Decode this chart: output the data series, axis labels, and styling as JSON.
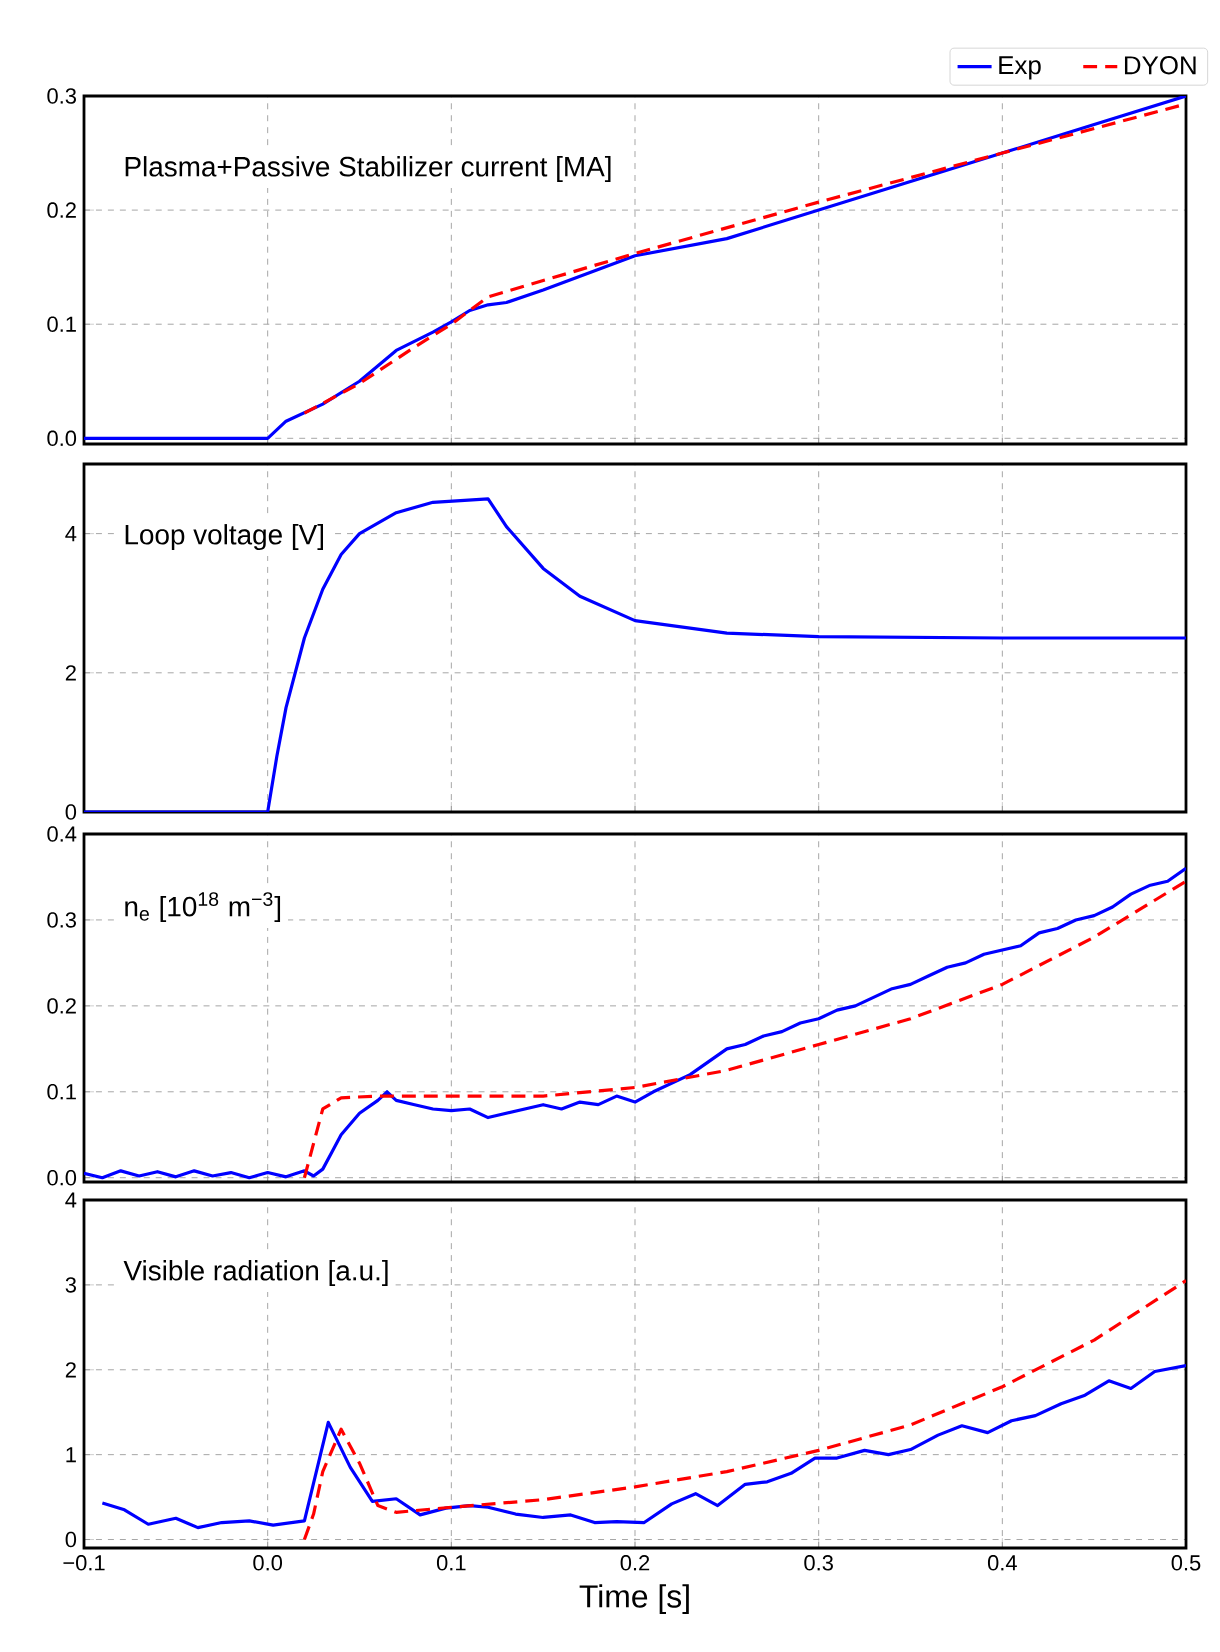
{
  "chart_data": [
    {
      "type": "line",
      "annotations": [
        "Plasma+Passive Stabilizer current [MA]"
      ],
      "xlim": [
        -0.1,
        0.5
      ],
      "ylim": [
        -0.005,
        0.3
      ],
      "xticks": [
        -0.1,
        0.0,
        0.1,
        0.2,
        0.3,
        0.4,
        0.5
      ],
      "yticks": [
        {
          "value": 0.0,
          "label": "0.0"
        },
        0.1,
        0.2,
        0.3
      ],
      "tick_labels": "y",
      "grid": true,
      "legend": "top right",
      "series": [
        {
          "name": "Exp",
          "color": "#0000ff",
          "line_style": "solid",
          "x": [
            -0.1,
            -0.05,
            0.0,
            0.01,
            0.03,
            0.05,
            0.07,
            0.09,
            0.1,
            0.11,
            0.12,
            0.13,
            0.15,
            0.2,
            0.25,
            0.3,
            0.35,
            0.4,
            0.45,
            0.5
          ],
          "values": [
            0.0,
            0.0,
            0.0,
            0.015,
            0.03,
            0.05,
            0.077,
            0.093,
            0.102,
            0.112,
            0.117,
            0.119,
            0.13,
            0.16,
            0.175,
            0.2,
            0.225,
            0.25,
            0.275,
            0.3
          ]
        },
        {
          "name": "DYON",
          "color": "#ff0000",
          "line_style": "dashed",
          "x": [
            0.02,
            0.05,
            0.08,
            0.1,
            0.12,
            0.2,
            0.3,
            0.4,
            0.5
          ],
          "values": [
            0.022,
            0.048,
            0.08,
            0.1,
            0.124,
            0.162,
            0.207,
            0.25,
            0.293
          ]
        }
      ]
    },
    {
      "type": "line",
      "annotations": [
        "Loop voltage [V]"
      ],
      "xlim": [
        -0.1,
        0.5
      ],
      "ylim": [
        0,
        5
      ],
      "xticks": [
        -0.1,
        0.0,
        0.1,
        0.2,
        0.3,
        0.4,
        0.5
      ],
      "yticks": [
        0,
        2,
        4
      ],
      "tick_labels": "y",
      "grid": true,
      "series": [
        {
          "color": "#0000ff",
          "line_style": "solid",
          "x": [
            -0.1,
            -0.05,
            0.0,
            0.005,
            0.01,
            0.02,
            0.03,
            0.04,
            0.05,
            0.07,
            0.09,
            0.12,
            0.13,
            0.15,
            0.17,
            0.2,
            0.25,
            0.3,
            0.4,
            0.5
          ],
          "values": [
            0,
            0,
            0,
            0.8,
            1.5,
            2.5,
            3.2,
            3.7,
            4.0,
            4.3,
            4.45,
            4.5,
            4.1,
            3.5,
            3.1,
            2.75,
            2.57,
            2.52,
            2.5,
            2.5
          ]
        }
      ]
    },
    {
      "type": "line",
      "annotations": [
        "n$_{e}$ [10$^{18}$ m$^{−3}$]"
      ],
      "xlim": [
        -0.1,
        0.5
      ],
      "ylim": [
        -0.005,
        0.4
      ],
      "xticks": [
        -0.1,
        0.0,
        0.1,
        0.2,
        0.3,
        0.4,
        0.5
      ],
      "yticks": [
        {
          "value": 0.0,
          "label": "0.0"
        },
        0.1,
        0.2,
        0.3,
        0.4
      ],
      "tick_labels": "y",
      "grid": true,
      "series": [
        {
          "color": "#0000ff",
          "line_style": "solid",
          "x": [
            -0.1,
            -0.09,
            -0.08,
            -0.07,
            -0.06,
            -0.05,
            -0.04,
            -0.03,
            -0.02,
            -0.01,
            0.0,
            0.01,
            0.02,
            0.025,
            0.03,
            0.035,
            0.04,
            0.05,
            0.06,
            0.065,
            0.07,
            0.08,
            0.09,
            0.1,
            0.11,
            0.12,
            0.13,
            0.14,
            0.15,
            0.16,
            0.17,
            0.18,
            0.19,
            0.2,
            0.21,
            0.22,
            0.23,
            0.24,
            0.25,
            0.26,
            0.27,
            0.28,
            0.29,
            0.3,
            0.31,
            0.32,
            0.33,
            0.34,
            0.35,
            0.36,
            0.37,
            0.38,
            0.39,
            0.4,
            0.41,
            0.42,
            0.43,
            0.44,
            0.45,
            0.46,
            0.47,
            0.48,
            0.49,
            0.5
          ],
          "values": [
            0.005,
            0.0,
            0.008,
            0.002,
            0.007,
            0.001,
            0.008,
            0.002,
            0.006,
            0.0,
            0.006,
            0.001,
            0.008,
            0.002,
            0.01,
            0.03,
            0.05,
            0.075,
            0.09,
            0.1,
            0.09,
            0.085,
            0.08,
            0.078,
            0.08,
            0.07,
            0.075,
            0.08,
            0.085,
            0.08,
            0.088,
            0.085,
            0.095,
            0.088,
            0.1,
            0.11,
            0.12,
            0.135,
            0.15,
            0.155,
            0.165,
            0.17,
            0.18,
            0.185,
            0.195,
            0.2,
            0.21,
            0.22,
            0.225,
            0.235,
            0.245,
            0.25,
            0.26,
            0.265,
            0.27,
            0.285,
            0.29,
            0.3,
            0.305,
            0.315,
            0.33,
            0.34,
            0.345,
            0.36
          ]
        },
        {
          "color": "#ff0000",
          "line_style": "dashed",
          "x": [
            0.02,
            0.025,
            0.03,
            0.04,
            0.06,
            0.1,
            0.15,
            0.2,
            0.25,
            0.3,
            0.35,
            0.4,
            0.45,
            0.5
          ],
          "values": [
            0.0,
            0.04,
            0.08,
            0.093,
            0.095,
            0.095,
            0.095,
            0.105,
            0.125,
            0.155,
            0.185,
            0.225,
            0.28,
            0.345
          ]
        }
      ]
    },
    {
      "type": "line",
      "annotations": [
        "Visible radiation [a.u.]"
      ],
      "xlabel": "Time [s]",
      "xlim": [
        -0.1,
        0.5
      ],
      "ylim": [
        -0.1,
        4
      ],
      "xticks": [
        {
          "value": -0.1,
          "label": "−0.1"
        },
        {
          "value": 0.0,
          "label": "0.0"
        },
        0.1,
        0.2,
        0.3,
        0.4,
        0.5
      ],
      "yticks": [
        0,
        1,
        2,
        3,
        4
      ],
      "grid": true,
      "series": [
        {
          "color": "#0000ff",
          "line_style": "solid",
          "x": [
            -0.09,
            -0.078,
            -0.065,
            -0.05,
            -0.038,
            -0.025,
            -0.01,
            0.003,
            0.02,
            0.033,
            0.045,
            0.057,
            0.07,
            0.083,
            0.097,
            0.11,
            0.12,
            0.135,
            0.15,
            0.165,
            0.178,
            0.19,
            0.205,
            0.22,
            0.233,
            0.245,
            0.26,
            0.272,
            0.285,
            0.298,
            0.31,
            0.325,
            0.338,
            0.35,
            0.365,
            0.378,
            0.392,
            0.405,
            0.418,
            0.432,
            0.445,
            0.458,
            0.47,
            0.483,
            0.5
          ],
          "values": [
            0.43,
            0.35,
            0.18,
            0.25,
            0.14,
            0.2,
            0.22,
            0.17,
            0.22,
            1.38,
            0.85,
            0.45,
            0.48,
            0.29,
            0.37,
            0.4,
            0.38,
            0.3,
            0.26,
            0.29,
            0.2,
            0.21,
            0.2,
            0.42,
            0.54,
            0.4,
            0.65,
            0.68,
            0.78,
            0.96,
            0.96,
            1.05,
            1.0,
            1.06,
            1.23,
            1.34,
            1.26,
            1.4,
            1.46,
            1.6,
            1.7,
            1.87,
            1.78,
            1.98,
            2.05
          ]
        },
        {
          "color": "#ff0000",
          "line_style": "dashed",
          "x": [
            0.02,
            0.025,
            0.03,
            0.04,
            0.05,
            0.06,
            0.07,
            0.1,
            0.15,
            0.2,
            0.25,
            0.3,
            0.35,
            0.4,
            0.45,
            0.5
          ],
          "values": [
            0.0,
            0.3,
            0.8,
            1.3,
            0.9,
            0.4,
            0.32,
            0.38,
            0.47,
            0.62,
            0.8,
            1.05,
            1.35,
            1.8,
            2.35,
            3.05
          ]
        }
      ]
    }
  ]
}
